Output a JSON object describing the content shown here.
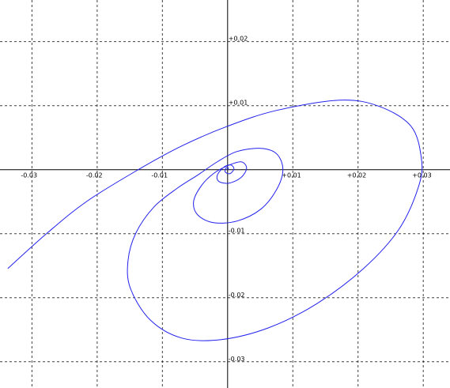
{
  "chart_data": {
    "type": "line",
    "xlim": [
      -0.0349,
      0.0341
    ],
    "ylim": [
      -0.0341,
      0.0265
    ],
    "xticks": [
      -0.03,
      -0.02,
      -0.01,
      {
        "value": 0.01,
        "label": "+0.01"
      },
      {
        "value": 0.02,
        "label": "+0.02"
      },
      {
        "value": 0.03,
        "label": "+0.03"
      }
    ],
    "yticks": [
      {
        "value": 0.02,
        "label": "+0.02"
      },
      {
        "value": 0.01,
        "label": "+0.01"
      },
      -0.01,
      -0.02,
      -0.03
    ],
    "grid": true,
    "series": [
      {
        "color": "#2222ee",
        "x": [
          -0.0337,
          -0.02764,
          -0.02158,
          -0.0137,
          -0.00703,
          0,
          0.00752,
          0.01721,
          0.02327,
          0.02812,
          0.0297,
          0.02933,
          0.0263,
          0.02085,
          0.01358,
          0.0063,
          -0.00097,
          -0.00703,
          -0.01188,
          -0.01491,
          -0.01527,
          -0.01406,
          -0.01127,
          -0.00764,
          -0.00461,
          -0.00158,
          0.00145,
          0.00509,
          0.00752,
          0.00848,
          0.00752,
          0.00509,
          0.00145,
          -0.00218,
          -0.00461,
          -0.00521,
          -0.004,
          -0.00218,
          0,
          0.00206,
          0.00291,
          0.00206,
          0.00024,
          -0.00133,
          -0.00158,
          -0.00061,
          0.00048,
          0.00097,
          0.00036,
          -0.00036,
          -0.00024,
          0.00012,
          0
        ],
        "values": [
          -0.01543,
          -0.00988,
          -0.00494,
          0,
          0.0037,
          0.00679,
          0.00926,
          0.01086,
          0.00988,
          0.00679,
          0.00185,
          -0.00247,
          -0.00926,
          -0.01543,
          -0.02099,
          -0.02469,
          -0.02654,
          -0.0263,
          -0.02346,
          -0.01852,
          -0.0142,
          -0.00988,
          -0.0058,
          -0.00284,
          -0.00086,
          0.00123,
          0.00284,
          0.00333,
          0.00247,
          0,
          -0.00309,
          -0.00617,
          -0.00802,
          -0.00827,
          -0.00704,
          -0.00494,
          -0.00247,
          -0.00062,
          0.00062,
          0.00123,
          0.00025,
          -0.00123,
          -0.0021,
          -0.00185,
          -0.00086,
          0.00037,
          0.00074,
          0.00012,
          -0.00062,
          -0.00037,
          0.00025,
          0.00025,
          0
        ]
      }
    ]
  }
}
